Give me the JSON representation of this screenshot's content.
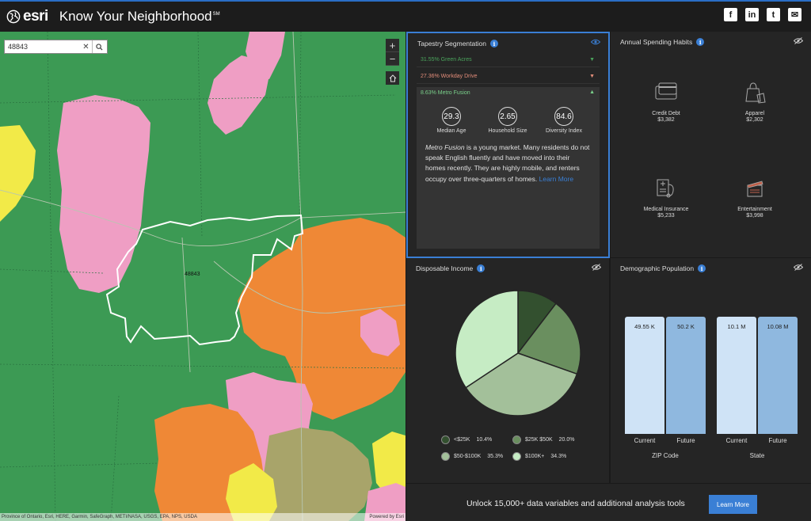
{
  "header": {
    "brand": "esri",
    "title": "Know Your Neighborhood",
    "title_sup": "SM",
    "social": [
      "f",
      "in",
      "t",
      "✉"
    ]
  },
  "map": {
    "search_value": "48843",
    "zip_label": "48843",
    "attribution": "Province of Ontario, Esri, HERE, Garmin, SafeGraph, METI/NASA, USGS, EPA, NPS, USDA",
    "powered_by": "Powered by Esri",
    "colors": {
      "green": "#3c9a54",
      "pink": "#ef9ec4",
      "orange": "#ef8836",
      "yellow": "#f2ea48",
      "olive": "#a8a46a"
    }
  },
  "tapestry": {
    "title": "Tapestry Segmentation",
    "segments": [
      {
        "label": "31.55% Green Acres",
        "color": "#4aa35c"
      },
      {
        "label": "27.36% Workday Drive",
        "color": "#e38d7a"
      },
      {
        "label": "8.63% Metro Fusion",
        "color": "#7ad08a"
      }
    ],
    "stats": [
      {
        "value": "29.3",
        "label": "Median Age"
      },
      {
        "value": "2.65",
        "label": "Household Size"
      },
      {
        "value": "84.6",
        "label": "Diversity Index"
      }
    ],
    "desc_em": "Metro Fusion",
    "desc_text": " is a young market. Many residents do not speak English fluently and have moved into their homes recently. They are highly mobile, and renters occupy over three-quarters of homes. ",
    "desc_link": "Learn More"
  },
  "spending": {
    "title": "Annual Spending Habits",
    "items": [
      {
        "label": "Credit Debt",
        "value": "$3,382",
        "icon": "credit-card-icon"
      },
      {
        "label": "Apparel",
        "value": "$2,302",
        "icon": "shopping-bag-icon"
      },
      {
        "label": "Medical Insurance",
        "value": "$5,233",
        "icon": "medical-insurance-icon"
      },
      {
        "label": "Entertainment",
        "value": "$3,998",
        "icon": "clapperboard-icon"
      }
    ]
  },
  "income": {
    "title": "Disposable Income",
    "legend": [
      {
        "label": "<$25K",
        "pct": "10.4%",
        "color": "#33502f"
      },
      {
        "label": "$25K $50K",
        "pct": "20.0%",
        "color": "#6a8f5f"
      },
      {
        "label": "$50-$100K",
        "pct": "35.3%",
        "color": "#a3c09a"
      },
      {
        "label": "$100K+",
        "pct": "34.3%",
        "color": "#c6ecc4"
      }
    ]
  },
  "chart_data": [
    {
      "type": "pie",
      "title": "Disposable Income",
      "categories": [
        "<$25K",
        "$25K $50K",
        "$50-$100K",
        "$100K+"
      ],
      "values": [
        10.4,
        20.0,
        35.3,
        34.3
      ],
      "colors": [
        "#33502f",
        "#6a8f5f",
        "#a3c09a",
        "#c6ecc4"
      ]
    },
    {
      "type": "bar",
      "title": "Demographic Population",
      "categories": [
        "Current",
        "Future",
        "Current",
        "Future"
      ],
      "groups": [
        "ZIP Code",
        "State"
      ],
      "values": [
        49550,
        50200,
        10100000,
        10080000
      ],
      "value_labels": [
        "49.55 K",
        "50.2 K",
        "10.1 M",
        "10.08 M"
      ],
      "colors": [
        "#cfe3f6",
        "#8fb8df",
        "#cfe3f6",
        "#8fb8df"
      ]
    }
  ],
  "demo": {
    "title": "Demographic Population",
    "bars": [
      {
        "label": "49.55 K",
        "x": "Current"
      },
      {
        "label": "50.2 K",
        "x": "Future"
      },
      {
        "label": "10.1 M",
        "x": "Current"
      },
      {
        "label": "10.08 M",
        "x": "Future"
      }
    ],
    "groups": [
      "ZIP Code",
      "State"
    ]
  },
  "footer": {
    "text": "Unlock 15,000+ data variables and additional analysis tools",
    "button": "Learn More"
  }
}
